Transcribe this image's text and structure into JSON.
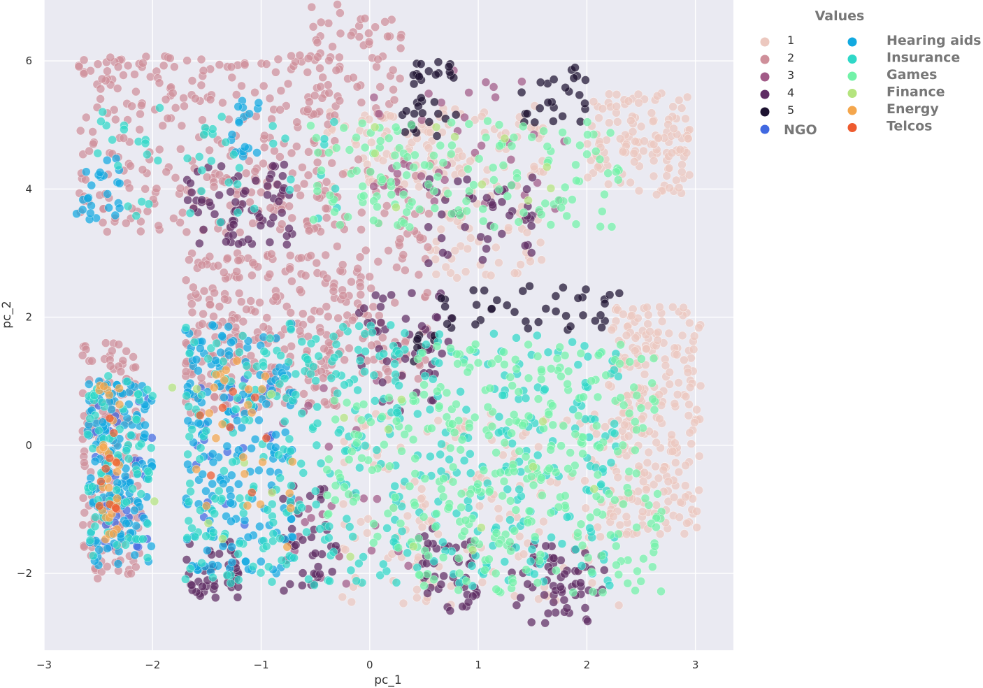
{
  "chart_data": {
    "type": "scatter",
    "xlabel": "pc_1",
    "ylabel": "pc_2",
    "xlim": [
      -3,
      3.35
    ],
    "ylim": [
      -3.2,
      6.95
    ],
    "xticks": [
      -3,
      -2,
      -1,
      0,
      1,
      2,
      3
    ],
    "yticks": [
      -2,
      0,
      2,
      4,
      6
    ],
    "xtick_labels": [
      "−3",
      "−2",
      "−1",
      "0",
      "1",
      "2",
      "3"
    ],
    "ytick_labels": [
      "−2",
      "0",
      "2",
      "4",
      "6"
    ],
    "grid": true,
    "background_color": "#eaeaf2",
    "grid_color": "#ffffff",
    "legend": {
      "title": "Values",
      "placement": "outside-right",
      "value_entries": [
        {
          "label": "1",
          "color": "#ecc8bf"
        },
        {
          "label": "2",
          "color": "#cf8f9a"
        },
        {
          "label": "3",
          "color": "#a15a87"
        },
        {
          "label": "4",
          "color": "#5e2c63"
        },
        {
          "label": "5",
          "color": "#1d1230"
        },
        {
          "label": "NGO",
          "color": "#4169e1"
        }
      ],
      "category_entries": [
        {
          "label": "Hearing aids",
          "color": "#12a9e0"
        },
        {
          "label": "Insurance",
          "color": "#2fd8c8"
        },
        {
          "label": "Games",
          "color": "#72f2a8"
        },
        {
          "label": "Finance",
          "color": "#b4e47e"
        },
        {
          "label": "Energy",
          "color": "#f4a64c"
        },
        {
          "label": "Telcos",
          "color": "#ee5b2f"
        }
      ]
    },
    "series": [
      {
        "name": "1",
        "color": "#ecc8bf",
        "clusters": [
          {
            "x": [
              2.2,
              3.05
            ],
            "y": [
              -1.4,
              2.2
            ],
            "n": 260
          },
          {
            "x": [
              2.0,
              2.95
            ],
            "y": [
              3.9,
              5.5
            ],
            "n": 130
          },
          {
            "x": [
              0.55,
              1.6
            ],
            "y": [
              2.6,
              5.3
            ],
            "n": 110
          },
          {
            "x": [
              -0.3,
              2.3
            ],
            "y": [
              -2.5,
              0.5
            ],
            "n": 160
          },
          {
            "x": [
              -0.4,
              0.6
            ],
            "y": [
              4.0,
              5.2
            ],
            "n": 60
          }
        ]
      },
      {
        "name": "2",
        "color": "#cf8f9a",
        "clusters": [
          {
            "x": [
              -2.65,
              -2.1
            ],
            "y": [
              -2.1,
              1.6
            ],
            "n": 160
          },
          {
            "x": [
              -1.7,
              -0.3
            ],
            "y": [
              0.5,
              3.0
            ],
            "n": 260
          },
          {
            "x": [
              -2.7,
              -0.3
            ],
            "y": [
              3.3,
              6.1
            ],
            "n": 300
          },
          {
            "x": [
              -0.6,
              0.3
            ],
            "y": [
              5.0,
              6.9
            ],
            "n": 70
          },
          {
            "x": [
              -0.3,
              0.6
            ],
            "y": [
              1.0,
              4.5
            ],
            "n": 120
          }
        ]
      },
      {
        "name": "3",
        "color": "#a15a87",
        "clusters": [
          {
            "x": [
              0.0,
              1.8
            ],
            "y": [
              3.6,
              5.9
            ],
            "n": 40
          },
          {
            "x": [
              -1.0,
              0.5
            ],
            "y": [
              -2.2,
              1.5
            ],
            "n": 30
          }
        ]
      },
      {
        "name": "4",
        "color": "#5e2c63",
        "clusters": [
          {
            "x": [
              -1.7,
              -0.7
            ],
            "y": [
              3.1,
              4.4
            ],
            "n": 70
          },
          {
            "x": [
              -1.7,
              -1.2
            ],
            "y": [
              -2.4,
              -1.5
            ],
            "n": 45
          },
          {
            "x": [
              -0.8,
              -0.3
            ],
            "y": [
              -2.3,
              -0.6
            ],
            "n": 40
          },
          {
            "x": [
              0.4,
              1.0
            ],
            "y": [
              -2.6,
              -1.3
            ],
            "n": 45
          },
          {
            "x": [
              1.3,
              2.2
            ],
            "y": [
              -2.8,
              -1.5
            ],
            "n": 60
          },
          {
            "x": [
              0.5,
              1.5
            ],
            "y": [
              2.8,
              4.2
            ],
            "n": 45
          },
          {
            "x": [
              -0.1,
              0.8
            ],
            "y": [
              0.5,
              2.4
            ],
            "n": 45
          }
        ]
      },
      {
        "name": "5",
        "color": "#1d1230",
        "clusters": [
          {
            "x": [
              0.3,
              0.8
            ],
            "y": [
              4.8,
              6.0
            ],
            "n": 35
          },
          {
            "x": [
              1.2,
              2.0
            ],
            "y": [
              5.0,
              5.9
            ],
            "n": 25
          },
          {
            "x": [
              0.6,
              2.3
            ],
            "y": [
              1.8,
              2.5
            ],
            "n": 40
          },
          {
            "x": [
              0.4,
              0.6
            ],
            "y": [
              1.3,
              2.0
            ],
            "n": 8
          }
        ]
      },
      {
        "name": "NGO",
        "color": "#4169e1",
        "clusters": [
          {
            "x": [
              -2.55,
              -2.0
            ],
            "y": [
              -1.6,
              0.8
            ],
            "n": 30
          },
          {
            "x": [
              -1.6,
              -0.9
            ],
            "y": [
              -1.4,
              1.2
            ],
            "n": 25
          }
        ]
      },
      {
        "name": "Hearing aids",
        "color": "#12a9e0",
        "clusters": [
          {
            "x": [
              -2.6,
              -2.0
            ],
            "y": [
              -1.9,
              1.0
            ],
            "n": 140
          },
          {
            "x": [
              -1.7,
              -0.7
            ],
            "y": [
              -2.0,
              1.9
            ],
            "n": 180
          },
          {
            "x": [
              -2.7,
              -2.3
            ],
            "y": [
              3.5,
              4.5
            ],
            "n": 25
          },
          {
            "x": [
              -1.3,
              -1.0
            ],
            "y": [
              4.4,
              5.4
            ],
            "n": 18
          }
        ]
      },
      {
        "name": "Insurance",
        "color": "#2fd8c8",
        "clusters": [
          {
            "x": [
              -1.7,
              0.3
            ],
            "y": [
              -2.2,
              1.9
            ],
            "n": 240
          },
          {
            "x": [
              0.2,
              2.3
            ],
            "y": [
              -2.2,
              1.8
            ],
            "n": 200
          },
          {
            "x": [
              -2.6,
              -2.0
            ],
            "y": [
              -1.8,
              1.2
            ],
            "n": 70
          },
          {
            "x": [
              -2.6,
              -0.3
            ],
            "y": [
              3.4,
              5.3
            ],
            "n": 50
          }
        ]
      },
      {
        "name": "Games",
        "color": "#72f2a8",
        "clusters": [
          {
            "x": [
              0.4,
              2.7
            ],
            "y": [
              -2.3,
              1.6
            ],
            "n": 300
          },
          {
            "x": [
              -0.6,
              2.3
            ],
            "y": [
              3.4,
              5.1
            ],
            "n": 150
          },
          {
            "x": [
              -0.4,
              0.4
            ],
            "y": [
              -1.6,
              0.8
            ],
            "n": 50
          }
        ]
      },
      {
        "name": "Finance",
        "color": "#b4e47e",
        "clusters": [
          {
            "x": [
              -2.5,
              2.2
            ],
            "y": [
              -2.0,
              1.0
            ],
            "n": 18
          },
          {
            "x": [
              -0.3,
              2.0
            ],
            "y": [
              3.7,
              5.0
            ],
            "n": 10
          }
        ]
      },
      {
        "name": "Energy",
        "color": "#f4a64c",
        "clusters": [
          {
            "x": [
              -2.5,
              -2.3
            ],
            "y": [
              -1.5,
              1.0
            ],
            "n": 30
          },
          {
            "x": [
              -1.6,
              -0.7
            ],
            "y": [
              -1.6,
              1.4
            ],
            "n": 25
          }
        ]
      },
      {
        "name": "Telcos",
        "color": "#ee5b2f",
        "clusters": [
          {
            "x": [
              -2.5,
              -2.3
            ],
            "y": [
              -1.0,
              0.5
            ],
            "n": 10
          },
          {
            "x": [
              -1.6,
              -0.8
            ],
            "y": [
              -1.2,
              1.2
            ],
            "n": 8
          }
        ]
      }
    ]
  }
}
